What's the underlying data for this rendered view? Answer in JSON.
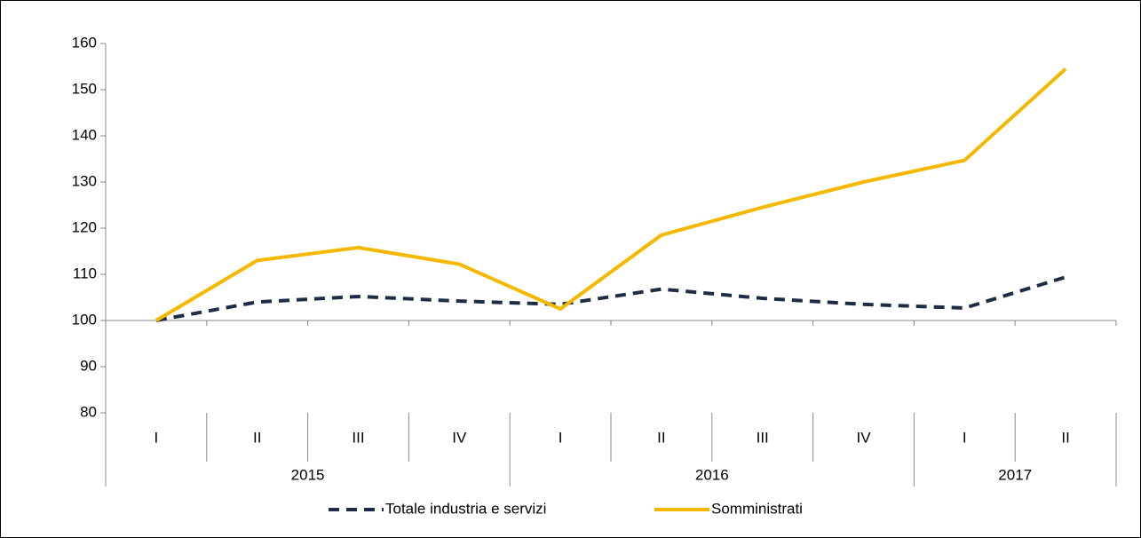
{
  "chart_data": {
    "type": "line",
    "categories": [
      "I",
      "II",
      "III",
      "IV",
      "I",
      "II",
      "III",
      "IV",
      "I",
      "II"
    ],
    "year_groups": [
      {
        "label": "2015",
        "count": 4
      },
      {
        "label": "2016",
        "count": 4
      },
      {
        "label": "2017",
        "count": 2
      }
    ],
    "series": [
      {
        "name": "Totale industria e servizi",
        "color": "#1f2d44",
        "dashed": true,
        "values": [
          100,
          104,
          105.2,
          104.2,
          103.5,
          106.8,
          104.8,
          103.5,
          102.7,
          109.4
        ]
      },
      {
        "name": "Somministrati",
        "color": "#f5b800",
        "dashed": false,
        "values": [
          100,
          113,
          115.8,
          112.2,
          102.5,
          118.5,
          124.5,
          130,
          134.7,
          154.5
        ]
      }
    ],
    "ylim": [
      80,
      160
    ],
    "yticks": [
      80,
      90,
      100,
      110,
      120,
      130,
      140,
      150,
      160
    ],
    "baseline": 100,
    "legend": "bottom"
  }
}
